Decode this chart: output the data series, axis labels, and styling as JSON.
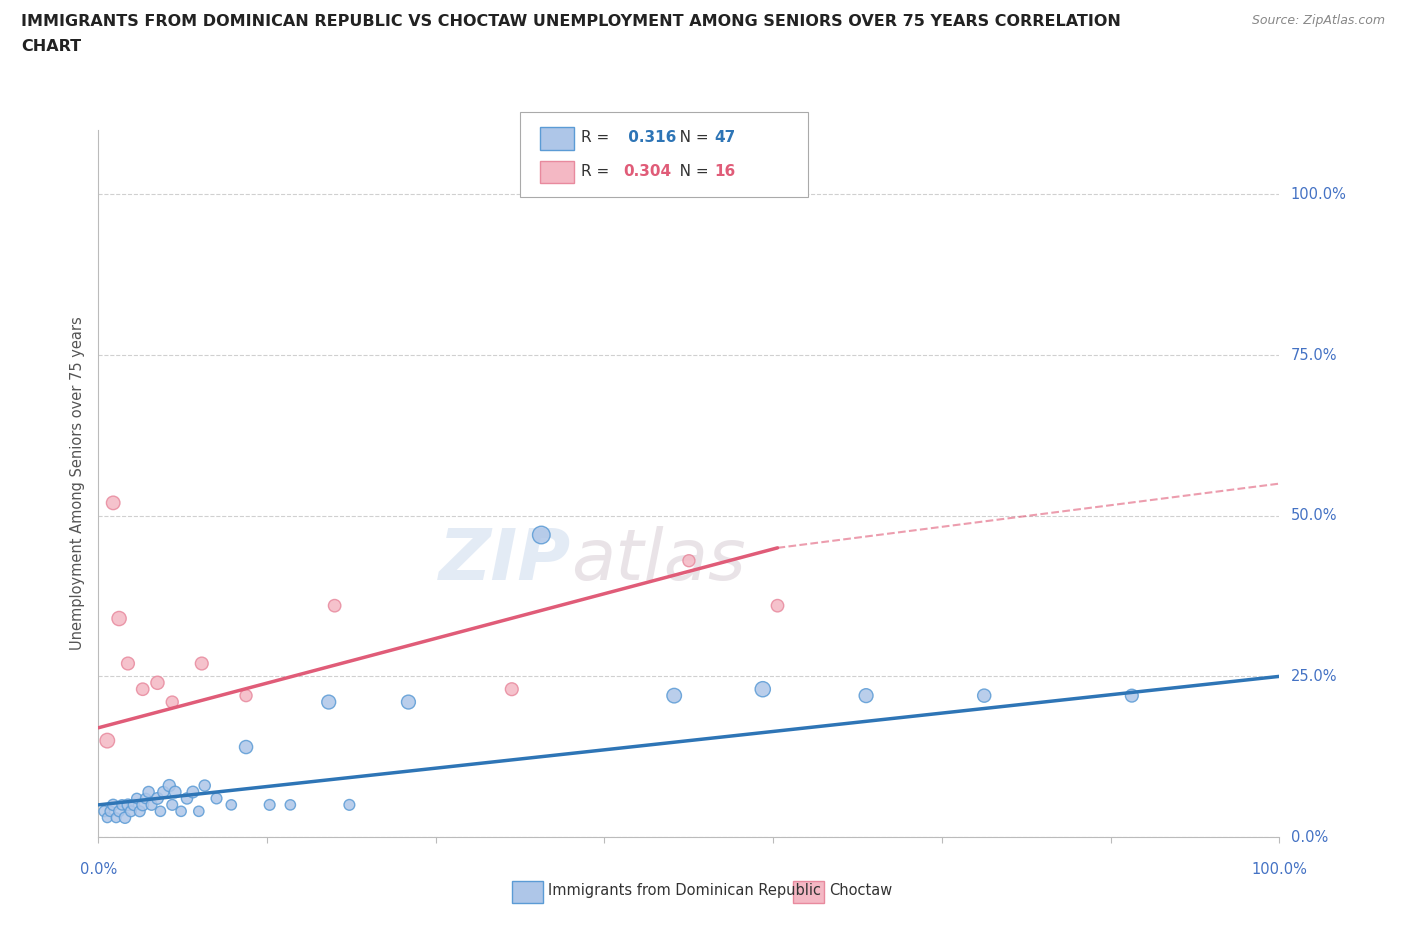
{
  "title_line1": "IMMIGRANTS FROM DOMINICAN REPUBLIC VS CHOCTAW UNEMPLOYMENT AMONG SENIORS OVER 75 YEARS CORRELATION",
  "title_line2": "CHART",
  "source": "Source: ZipAtlas.com",
  "ylabel": "Unemployment Among Seniors over 75 years",
  "ytick_labels": [
    "0.0%",
    "25.0%",
    "50.0%",
    "75.0%",
    "100.0%"
  ],
  "ytick_values": [
    0,
    25,
    50,
    75,
    100
  ],
  "xlim": [
    0,
    40
  ],
  "ylim": [
    0,
    110
  ],
  "legend_blue_r": "0.316",
  "legend_blue_n": "47",
  "legend_pink_r": "0.304",
  "legend_pink_n": "16",
  "legend_blue_label": "Immigrants from Dominican Republic",
  "legend_pink_label": "Choctaw",
  "watermark_zip": "ZIP",
  "watermark_atlas": "atlas",
  "blue_color": "#aec6e8",
  "blue_edge_color": "#5b9bd5",
  "blue_line_color": "#2e75b6",
  "pink_color": "#f4b8c4",
  "pink_edge_color": "#e88a9e",
  "pink_line_color": "#e05c78",
  "background_color": "#ffffff",
  "grid_color": "#d0d0d0",
  "title_color": "#222222",
  "right_label_color": "#4472c4",
  "xtick_positions": [
    0,
    5.71,
    11.43,
    17.14,
    22.86,
    28.57,
    34.29,
    40.0
  ],
  "blue_scatter_x": [
    0.2,
    0.3,
    0.4,
    0.5,
    0.6,
    0.7,
    0.8,
    0.9,
    1.0,
    1.1,
    1.2,
    1.3,
    1.4,
    1.5,
    1.6,
    1.7,
    1.8,
    2.0,
    2.1,
    2.2,
    2.4,
    2.5,
    2.6,
    2.8,
    3.0,
    3.2,
    3.4,
    3.6,
    4.0,
    4.5,
    5.0,
    5.8,
    6.5,
    7.8,
    8.5,
    10.5,
    15.0,
    19.5,
    22.5,
    26.0,
    30.0,
    35.0
  ],
  "blue_scatter_y": [
    4,
    3,
    4,
    5,
    3,
    4,
    5,
    3,
    5,
    4,
    5,
    6,
    4,
    5,
    6,
    7,
    5,
    6,
    4,
    7,
    8,
    5,
    7,
    4,
    6,
    7,
    4,
    8,
    6,
    5,
    14,
    5,
    5,
    21,
    5,
    21,
    47,
    22,
    23,
    22,
    22,
    22
  ],
  "blue_scatter_size": [
    60,
    50,
    55,
    65,
    50,
    60,
    55,
    65,
    70,
    60,
    65,
    55,
    60,
    70,
    55,
    65,
    60,
    70,
    55,
    65,
    75,
    60,
    70,
    55,
    65,
    70,
    55,
    65,
    60,
    55,
    90,
    60,
    55,
    100,
    60,
    100,
    160,
    110,
    120,
    100,
    90,
    85
  ],
  "pink_scatter_x": [
    0.3,
    0.5,
    0.7,
    1.0,
    1.5,
    2.0,
    2.5,
    3.5,
    5.0,
    8.0,
    14.0,
    20.0,
    23.0
  ],
  "pink_scatter_y": [
    15,
    52,
    34,
    27,
    23,
    24,
    21,
    27,
    22,
    36,
    23,
    43,
    36
  ],
  "pink_scatter_size": [
    110,
    95,
    105,
    85,
    80,
    90,
    75,
    85,
    75,
    80,
    85,
    75,
    80
  ],
  "blue_trend_x0": 0,
  "blue_trend_y0": 5,
  "blue_trend_x1": 40,
  "blue_trend_y1": 25,
  "pink_trend_x0": 0,
  "pink_trend_y0": 17,
  "pink_trend_x1": 23,
  "pink_trend_y1": 45,
  "pink_dash_x0": 23,
  "pink_dash_y0": 45,
  "pink_dash_x1": 40,
  "pink_dash_y1": 55
}
